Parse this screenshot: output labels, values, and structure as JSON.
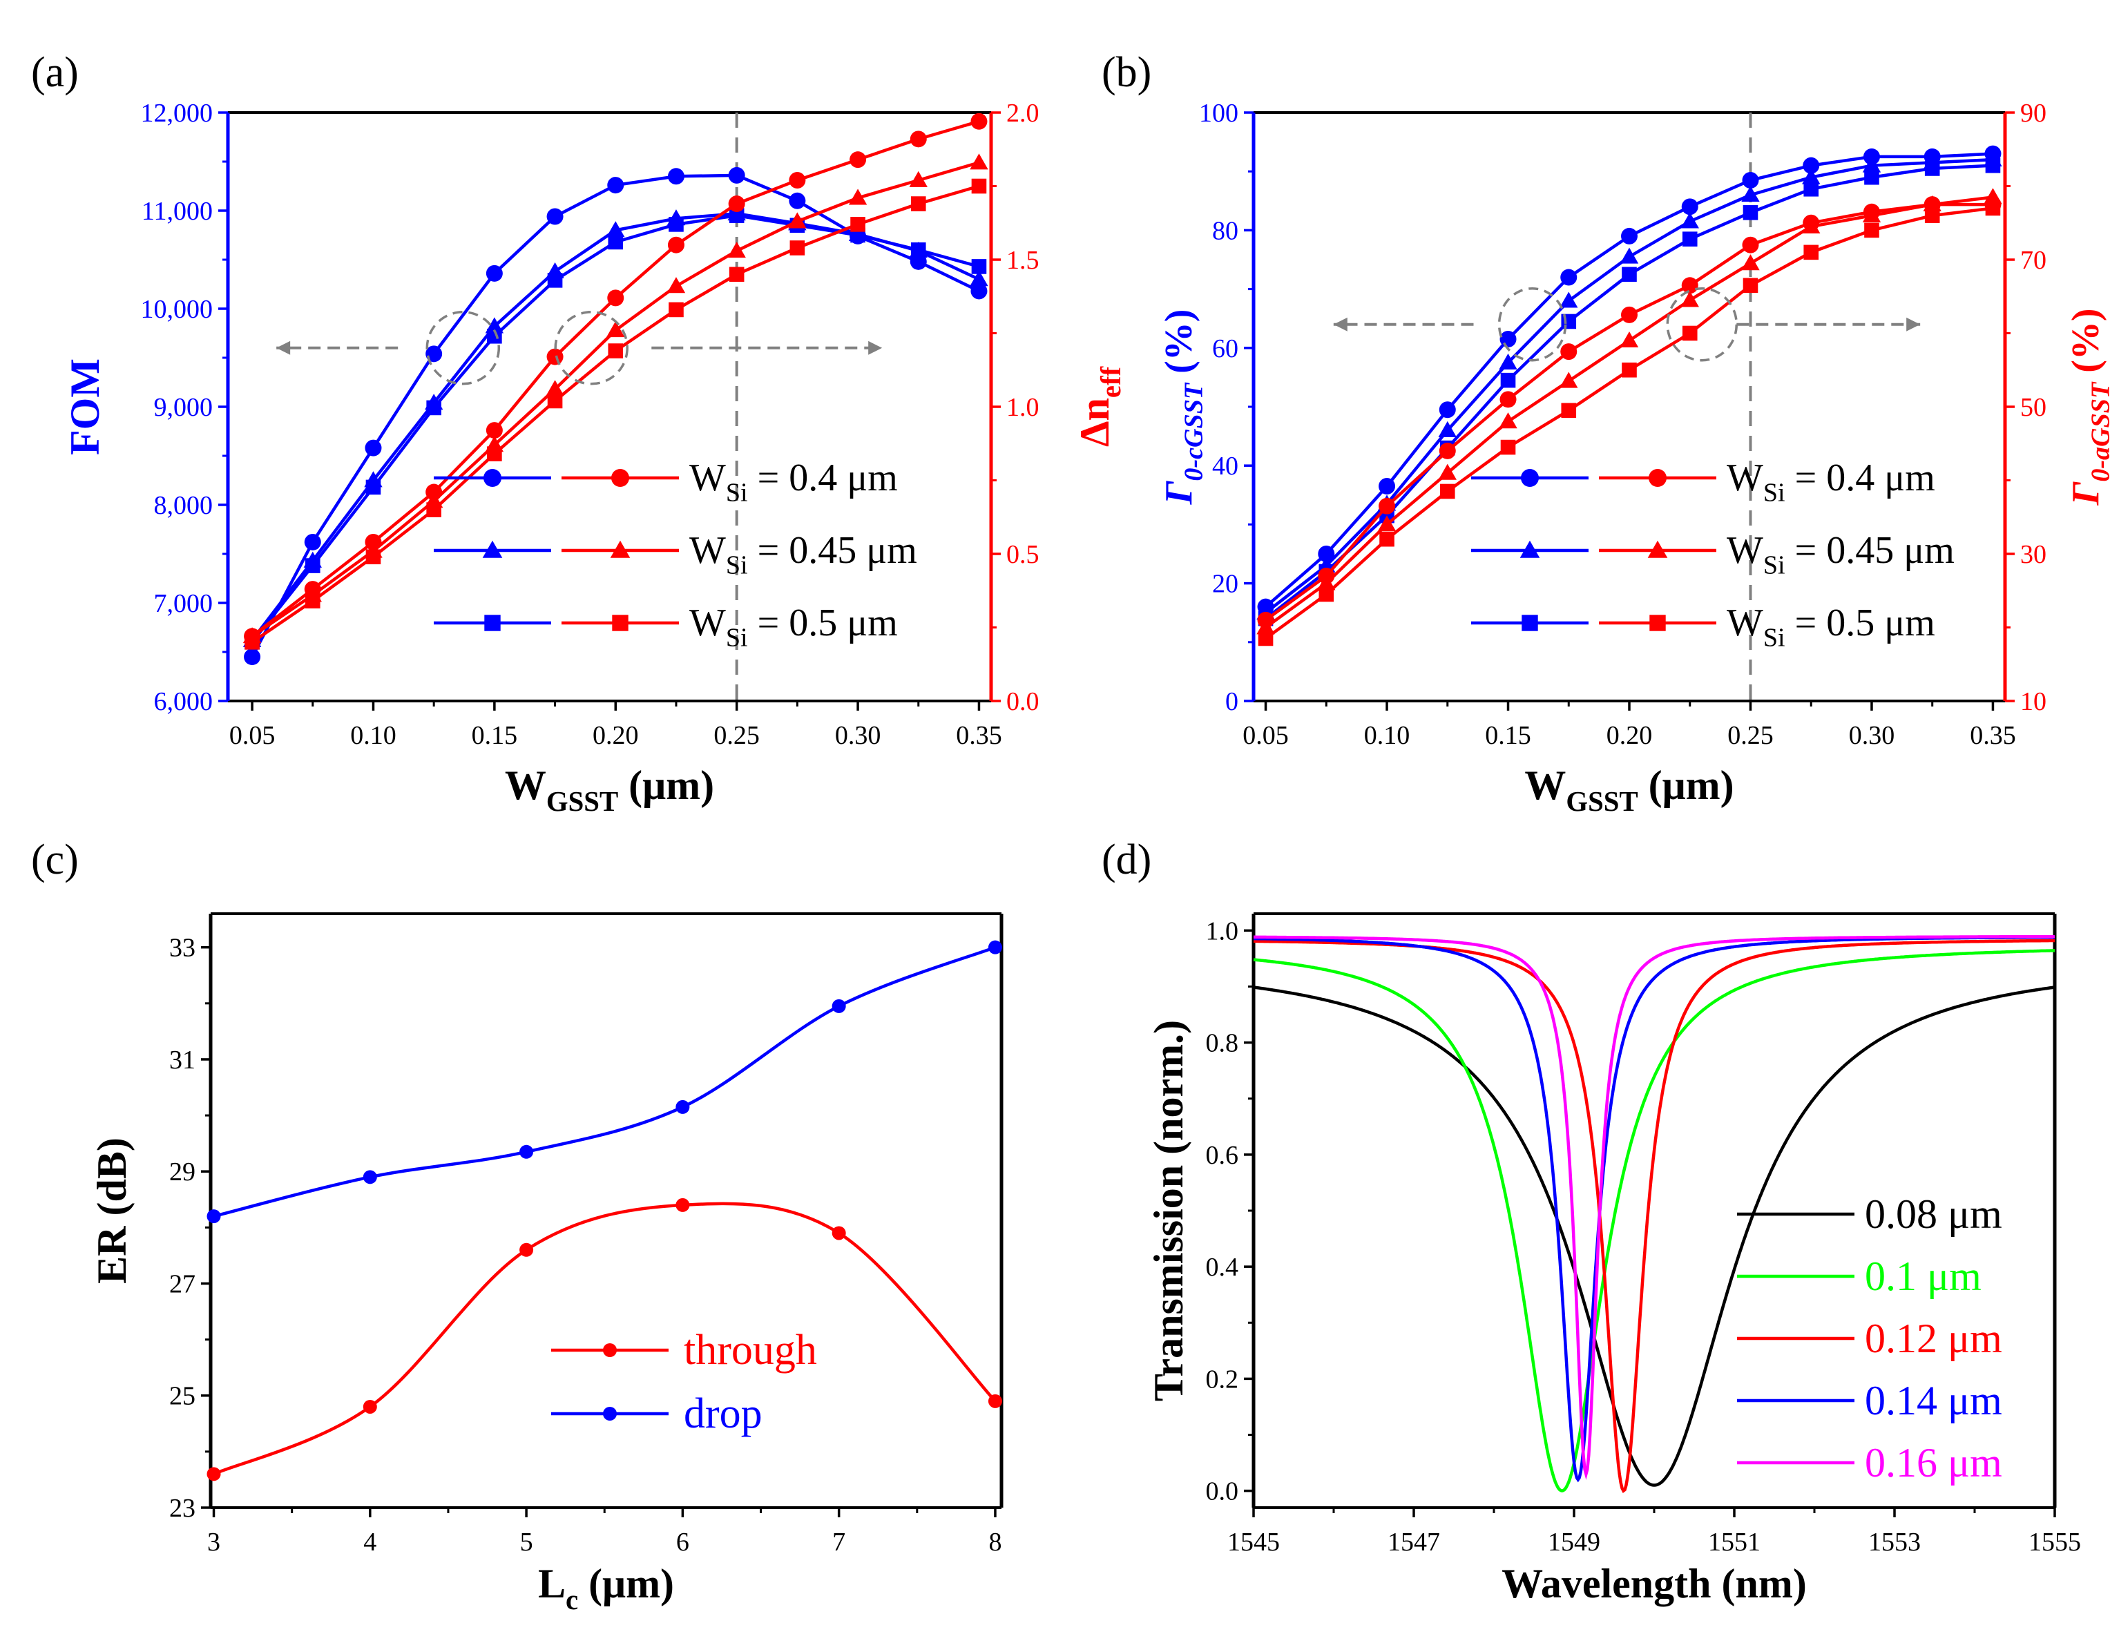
{
  "chart_data": [
    {
      "id": "a",
      "panel_label": "(a)",
      "type": "line",
      "title": "",
      "x": [
        0.05,
        0.075,
        0.1,
        0.125,
        0.15,
        0.175,
        0.2,
        0.225,
        0.25,
        0.275,
        0.3,
        0.325,
        0.35
      ],
      "xlim": [
        0.04,
        0.355
      ],
      "xticks": [
        0.05,
        0.1,
        0.15,
        0.2,
        0.25,
        0.3,
        0.35
      ],
      "xtick_labels": [
        "0.05",
        "0.10",
        "0.15",
        "0.20",
        "0.25",
        "0.30",
        "0.35"
      ],
      "xlabel": {
        "main": "W",
        "sub": "GSST",
        "tail": " (μm)"
      },
      "ylabel": {
        "main": "FOM",
        "sub": "",
        "color": "#0000ff"
      },
      "ylim": [
        6000,
        12000
      ],
      "yticks": [
        6000,
        7000,
        8000,
        9000,
        10000,
        11000,
        12000
      ],
      "ytick_labels": [
        "6,000",
        "7,000",
        "8,000",
        "9,000",
        "10,000",
        "11,000",
        "12,000"
      ],
      "y2label": {
        "main": "Δn",
        "sub": "eff",
        "color": "#ff0000"
      },
      "y2lim": [
        0,
        2.0
      ],
      "y2ticks": [
        0,
        0.5,
        1.0,
        1.5,
        2.0
      ],
      "y2tick_labels": [
        "0.0",
        "0.5",
        "1.0",
        "1.5",
        "2.0"
      ],
      "vline": 0.25,
      "series": [
        {
          "name": "W_Si = 0.4 μm",
          "axis": "left",
          "color": "#0000ff",
          "marker": "circle",
          "values": [
            6450,
            7620,
            8580,
            9540,
            10360,
            10940,
            11260,
            11350,
            11360,
            11100,
            10740,
            10480,
            10180
          ]
        },
        {
          "name": "W_Si = 0.45 μm",
          "axis": "left",
          "color": "#0000ff",
          "marker": "triangle",
          "values": [
            6620,
            7430,
            8250,
            9040,
            9820,
            10380,
            10800,
            10920,
            10970,
            10870,
            10760,
            10590,
            10300
          ]
        },
        {
          "name": "W_Si = 0.5 μm",
          "axis": "left",
          "color": "#0000ff",
          "marker": "square",
          "values": [
            6600,
            7380,
            8180,
            8990,
            9720,
            10290,
            10680,
            10860,
            10950,
            10850,
            10750,
            10600,
            10430
          ]
        },
        {
          "name": "W_Si = 0.4 μm",
          "axis": "right",
          "color": "#ff0000",
          "marker": "circle",
          "values": [
            0.22,
            0.38,
            0.54,
            0.71,
            0.92,
            1.17,
            1.37,
            1.55,
            1.69,
            1.77,
            1.84,
            1.91,
            1.97
          ]
        },
        {
          "name": "W_Si = 0.45 μm",
          "axis": "right",
          "color": "#ff0000",
          "marker": "triangle",
          "values": [
            0.22,
            0.36,
            0.51,
            0.68,
            0.87,
            1.06,
            1.26,
            1.41,
            1.53,
            1.63,
            1.71,
            1.77,
            1.83
          ]
        },
        {
          "name": "W_Si = 0.5 μm",
          "axis": "right",
          "color": "#ff0000",
          "marker": "square",
          "values": [
            0.2,
            0.34,
            0.49,
            0.65,
            0.84,
            1.02,
            1.19,
            1.33,
            1.45,
            1.54,
            1.62,
            1.69,
            1.75
          ]
        }
      ],
      "legend": [
        {
          "text": "W",
          "sub": "Si",
          "tail": " = 0.4 μm",
          "marker": "circle"
        },
        {
          "text": "W",
          "sub": "Si",
          "tail": " = 0.45 μm",
          "marker": "triangle"
        },
        {
          "text": "W",
          "sub": "Si",
          "tail": " = 0.5 μm",
          "marker": "square"
        }
      ],
      "legend_placement": "bottom-right",
      "annotations": [
        "dashed ellipse around blue curves with left arrow",
        "dashed ellipse around red curves with right arrow"
      ]
    },
    {
      "id": "b",
      "panel_label": "(b)",
      "type": "line",
      "title": "",
      "x": [
        0.05,
        0.075,
        0.1,
        0.125,
        0.15,
        0.175,
        0.2,
        0.225,
        0.25,
        0.275,
        0.3,
        0.325,
        0.35
      ],
      "xlim": [
        0.045,
        0.355
      ],
      "xticks": [
        0.05,
        0.1,
        0.15,
        0.2,
        0.25,
        0.3,
        0.35
      ],
      "xtick_labels": [
        "0.05",
        "0.10",
        "0.15",
        "0.20",
        "0.25",
        "0.30",
        "0.35"
      ],
      "xlabel": {
        "main": "W",
        "sub": "GSST",
        "tail": " (μm)"
      },
      "ylabel": {
        "main": "Γ",
        "sub": "0-cGSST",
        "tail": " (%)",
        "color": "#0000ff"
      },
      "ylim": [
        0,
        100
      ],
      "yticks": [
        0,
        20,
        40,
        60,
        80,
        100
      ],
      "ytick_labels": [
        "0",
        "20",
        "40",
        "60",
        "80",
        "100"
      ],
      "y2label": {
        "main": "Γ",
        "sub": "0-aGSST",
        "tail": " (%)",
        "color": "#ff0000"
      },
      "y2lim": [
        10,
        90
      ],
      "y2ticks": [
        10,
        30,
        50,
        70,
        90
      ],
      "y2tick_labels": [
        "10",
        "30",
        "50",
        "70",
        "90"
      ],
      "vline": 0.25,
      "series": [
        {
          "name": "W_Si = 0.4 μm",
          "axis": "left",
          "color": "#0000ff",
          "marker": "circle",
          "values": [
            16,
            25,
            36.5,
            49.5,
            61.5,
            72,
            79,
            84,
            88.5,
            91,
            92.5,
            92.5,
            93
          ]
        },
        {
          "name": "W_Si = 0.45 μm",
          "axis": "left",
          "color": "#0000ff",
          "marker": "triangle",
          "values": [
            15,
            23,
            33.5,
            46,
            57.5,
            68,
            75.5,
            81.5,
            86,
            89,
            91,
            91.5,
            92
          ]
        },
        {
          "name": "W_Si = 0.5 μm",
          "axis": "left",
          "color": "#0000ff",
          "marker": "square",
          "values": [
            14,
            22,
            31.5,
            43,
            54.5,
            64.5,
            72.5,
            78.5,
            83,
            87,
            89,
            90.5,
            91
          ]
        },
        {
          "name": "W_Si = 0.4 μm",
          "axis": "right",
          "color": "#ff0000",
          "marker": "circle",
          "values": [
            21,
            27,
            36.5,
            44,
            51,
            57.5,
            62.5,
            66.5,
            72,
            75,
            76.5,
            77.5,
            77.5
          ]
        },
        {
          "name": "W_Si = 0.45 μm",
          "axis": "right",
          "color": "#ff0000",
          "marker": "triangle",
          "values": [
            20,
            26,
            34,
            41,
            48,
            53.5,
            59,
            64.5,
            69.5,
            74.5,
            76,
            77.5,
            78.5
          ]
        },
        {
          "name": "W_Si = 0.5 μm",
          "axis": "right",
          "color": "#ff0000",
          "marker": "square",
          "values": [
            18.5,
            24.5,
            32,
            38.5,
            44.5,
            49.5,
            55,
            60,
            66.5,
            71,
            74,
            76,
            77
          ]
        }
      ],
      "legend": [
        {
          "text": "W",
          "sub": "Si",
          "tail": " = 0.4 μm",
          "marker": "circle"
        },
        {
          "text": "W",
          "sub": "Si",
          "tail": " = 0.45 μm",
          "marker": "triangle"
        },
        {
          "text": "W",
          "sub": "Si",
          "tail": " = 0.5 μm",
          "marker": "square"
        }
      ],
      "legend_placement": "bottom-right",
      "annotations": [
        "dashed ellipse around blue curves with left arrow",
        "dashed ellipse around red curves with right arrow"
      ]
    },
    {
      "id": "c",
      "panel_label": "(c)",
      "type": "line",
      "title": "",
      "xlim": [
        2.98,
        8.04
      ],
      "xticks": [
        3,
        4,
        5,
        6,
        7,
        8
      ],
      "xtick_labels": [
        "3",
        "4",
        "5",
        "6",
        "7",
        "8"
      ],
      "xlabel": {
        "main": "L",
        "sub": "c",
        "tail": " (μm)"
      },
      "ylabel": {
        "main": "ER (dB)",
        "sub": ""
      },
      "ylim": [
        23,
        33.6
      ],
      "yticks": [
        23,
        25,
        27,
        29,
        31,
        33
      ],
      "ytick_labels": [
        "23",
        "25",
        "27",
        "29",
        "31",
        "33"
      ],
      "series": [
        {
          "name": "through",
          "color": "#ff0000",
          "marker": "circle",
          "x": [
            3,
            4,
            5,
            6,
            7,
            8
          ],
          "values": [
            23.6,
            24.8,
            27.6,
            28.4,
            27.9,
            24.9
          ]
        },
        {
          "name": "drop",
          "color": "#0000ff",
          "marker": "circle",
          "x": [
            3,
            4,
            5,
            6,
            7,
            8
          ],
          "values": [
            28.2,
            28.9,
            29.35,
            30.15,
            31.95,
            33.0
          ]
        }
      ],
      "legend": [
        {
          "text": "through",
          "color": "#ff0000"
        },
        {
          "text": "drop",
          "color": "#0000ff"
        }
      ],
      "legend_placement": "bottom-center"
    },
    {
      "id": "d",
      "panel_label": "(d)",
      "type": "line",
      "title": "",
      "xlim": [
        1545,
        1555
      ],
      "xticks": [
        1545,
        1547,
        1549,
        1551,
        1553,
        1555
      ],
      "xtick_labels": [
        "1545",
        "1547",
        "1549",
        "1551",
        "1553",
        "1555"
      ],
      "xlabel": {
        "main": "Wavelength (nm)",
        "sub": ""
      },
      "ylabel": {
        "main": "Transmission (norm.)",
        "sub": ""
      },
      "ylim": [
        -0.03,
        1.03
      ],
      "yticks": [
        0.0,
        0.2,
        0.4,
        0.6,
        0.8,
        1.0
      ],
      "ytick_labels": [
        "0.0",
        "0.2",
        "0.4",
        "0.6",
        "0.8",
        "1.0"
      ],
      "series": [
        {
          "name": "0.08 μm",
          "color": "#000000",
          "center": 1550.0,
          "fwhm": 2.4,
          "min": 0.01,
          "max": 0.95
        },
        {
          "name": "0.1 μm",
          "color": "#00ff00",
          "center": 1548.85,
          "fwhm": 1.3,
          "min": 0.0,
          "max": 0.975
        },
        {
          "name": "0.12 μm",
          "color": "#ff0000",
          "center": 1549.62,
          "fwhm": 0.6,
          "min": 0.0,
          "max": 0.985
        },
        {
          "name": "0.14 μm",
          "color": "#0000ff",
          "center": 1549.05,
          "fwhm": 0.55,
          "min": 0.02,
          "max": 0.99
        },
        {
          "name": "0.16 μm",
          "color": "#ff00ff",
          "center": 1549.15,
          "fwhm": 0.35,
          "min": 0.03,
          "max": 0.99
        }
      ],
      "legend": [
        {
          "text": "0.08 μm",
          "color": "#000000"
        },
        {
          "text": "0.1 μm",
          "color": "#00ff00"
        },
        {
          "text": "0.12 μm",
          "color": "#ff0000"
        },
        {
          "text": "0.14 μm",
          "color": "#0000ff"
        },
        {
          "text": "0.16 μm",
          "color": "#ff00ff"
        }
      ],
      "legend_placement": "bottom-right"
    }
  ]
}
